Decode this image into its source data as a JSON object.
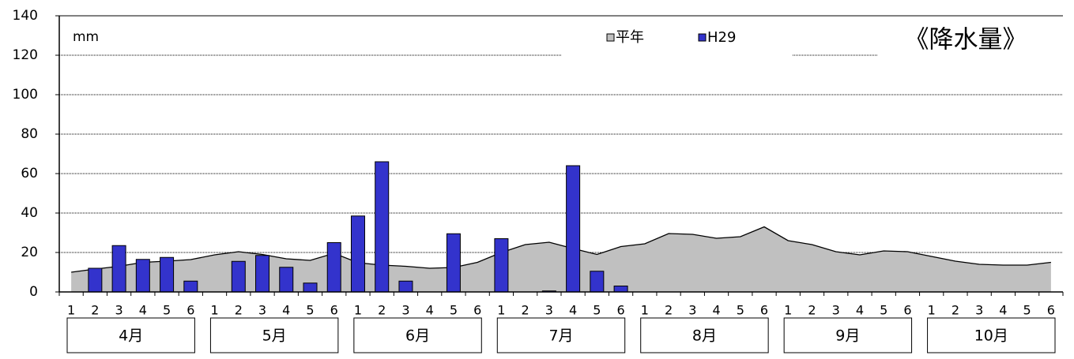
{
  "chart_data": {
    "type": "bar-area",
    "title": "《降水量》",
    "unit": "mm",
    "categories": [
      "1",
      "2",
      "3",
      "4",
      "5",
      "6",
      "1",
      "2",
      "3",
      "4",
      "5",
      "6",
      "1",
      "2",
      "3",
      "4",
      "5",
      "6",
      "1",
      "2",
      "3",
      "4",
      "5",
      "6",
      "1",
      "2",
      "3",
      "4",
      "5",
      "6",
      "1",
      "2",
      "3",
      "4",
      "5",
      "6",
      "1",
      "2",
      "3",
      "4",
      "5",
      "6"
    ],
    "groups": [
      "4月",
      "5月",
      "6月",
      "7月",
      "8月",
      "9月",
      "10月"
    ],
    "series": [
      {
        "name": "平年",
        "kind": "area",
        "color": "#c0c0c0",
        "values": [
          10,
          11.6,
          13,
          15,
          15.6,
          16.4,
          18.8,
          20.4,
          19,
          16.8,
          16,
          19.6,
          14.8,
          13.6,
          13,
          12,
          12.4,
          15,
          20,
          24,
          25.2,
          22,
          19,
          23,
          24.4,
          29.6,
          29.2,
          27.2,
          28,
          33,
          26,
          24,
          20.4,
          18.8,
          20.8,
          20.4,
          18,
          15.6,
          14,
          13.6,
          13.6,
          15
        ]
      },
      {
        "name": "H29",
        "kind": "bar",
        "color": "#3333cc",
        "values": [
          0,
          12,
          23.5,
          16.5,
          17.5,
          5.5,
          0,
          15.5,
          18.5,
          12.5,
          4.5,
          25,
          38.5,
          66,
          5.5,
          0,
          29.5,
          0,
          27,
          0,
          0.5,
          64,
          10.5,
          3,
          null,
          null,
          null,
          null,
          null,
          null,
          null,
          null,
          null,
          null,
          null,
          null,
          null,
          null,
          null,
          null,
          null,
          null
        ]
      }
    ],
    "ylim": [
      0,
      140
    ],
    "yticks": [
      0,
      20,
      40,
      60,
      80,
      100,
      120,
      140
    ],
    "grid": true
  }
}
